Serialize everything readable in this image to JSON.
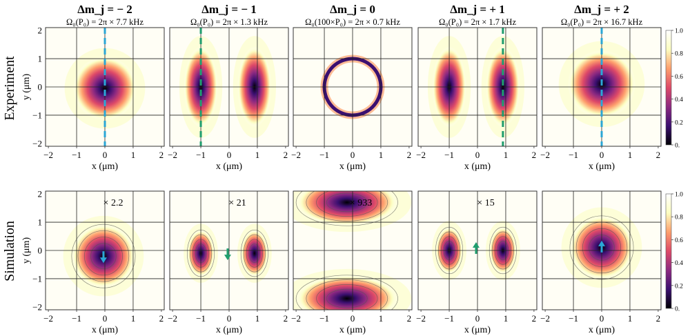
{
  "figure": {
    "row_labels": [
      "Experiment",
      "Simulation"
    ],
    "colorbar_ticks": [
      "1.0",
      "0.8",
      "0.6",
      "0.4",
      "0.2",
      "0."
    ],
    "colorbar_range": [
      0,
      1
    ],
    "colors": {
      "scale": [
        "#000004",
        "#3b0f70",
        "#8c2981",
        "#de4968",
        "#fe9f6d",
        "#fcfdbf",
        "#ffffff"
      ],
      "cut_blue": "#2aa7d6",
      "cut_green": "#1f9e6e",
      "grid": "#222222"
    }
  },
  "chart_data": [
    {
      "type": "heatmap",
      "panel": "experiment",
      "title": "Δm_j = − 2",
      "subtitle": "Ω₀(P₀) = 2π × 7.7 kHz",
      "xlabel": "x (μm)",
      "ylabel": "y (μm)",
      "xlim": [
        -2.1,
        2.1
      ],
      "ylim": [
        -2.1,
        2.1
      ],
      "xticks": [
        "−2",
        "−1",
        "0",
        "1",
        "2"
      ],
      "yticks": [
        "2",
        "1",
        "0",
        "−1",
        "−2"
      ],
      "grid": true,
      "lobes": [
        {
          "x": 0,
          "y": -0.05,
          "sx": 0.75,
          "sy": 0.75
        }
      ],
      "cut_line": {
        "x": 0,
        "color": "cut_blue"
      }
    },
    {
      "type": "heatmap",
      "panel": "experiment",
      "title": "Δm_j = − 1",
      "subtitle": "Ω₀(P₀) = 2π × 1.3 kHz",
      "xlabel": "x (μm)",
      "ylabel": "",
      "xlim": [
        -2.1,
        2.1
      ],
      "ylim": [
        -2.1,
        2.1
      ],
      "xticks": [
        "−2",
        "−1",
        "0",
        "1",
        "2"
      ],
      "yticks": [],
      "grid": true,
      "lobes": [
        {
          "x": -1.0,
          "y": 0,
          "sx": 0.4,
          "sy": 0.95
        },
        {
          "x": 0.9,
          "y": 0,
          "sx": 0.4,
          "sy": 0.95,
          "amp": 0.8
        }
      ],
      "cut_line": {
        "x": -1.0,
        "color": "cut_green"
      }
    },
    {
      "type": "heatmap",
      "panel": "experiment",
      "title": "Δm_j = 0",
      "subtitle": "Ω₀(100×P₀) = 2π × 0.7 kHz",
      "xlabel": "x (μm)",
      "ylabel": "",
      "xlim": [
        -2.1,
        2.1
      ],
      "ylim": [
        -2.1,
        2.1
      ],
      "xticks": [
        "−2",
        "−1",
        "0",
        "1",
        "2"
      ],
      "yticks": [],
      "grid": true,
      "ring": {
        "x": 0,
        "y": 0,
        "r": 1.0
      },
      "cut_line": null
    },
    {
      "type": "heatmap",
      "panel": "experiment",
      "title": "Δm_j = + 1",
      "subtitle": "Ω₀(P₀) = 2π × 1.7 kHz",
      "xlabel": "x (μm)",
      "ylabel": "",
      "xlim": [
        -2.1,
        2.1
      ],
      "ylim": [
        -2.1,
        2.1
      ],
      "xticks": [
        "−2",
        "−1",
        "0",
        "1",
        "2"
      ],
      "yticks": [],
      "grid": true,
      "lobes": [
        {
          "x": -1.0,
          "y": 0,
          "sx": 0.4,
          "sy": 0.95
        },
        {
          "x": 0.9,
          "y": 0,
          "sx": 0.4,
          "sy": 0.95
        }
      ],
      "cut_line": {
        "x": 0.9,
        "color": "cut_green"
      }
    },
    {
      "type": "heatmap",
      "panel": "experiment",
      "title": "Δm_j = + 2",
      "subtitle": "Ω₀(P₀) = 2π × 16.7 kHz",
      "xlabel": "x (μm)",
      "ylabel": "",
      "xlim": [
        -2.1,
        2.1
      ],
      "ylim": [
        -2.1,
        2.1
      ],
      "xticks": [
        "−2",
        "−1",
        "0",
        "1",
        "2"
      ],
      "yticks": [],
      "grid": true,
      "lobes": [
        {
          "x": 0,
          "y": 0.1,
          "sx": 0.8,
          "sy": 0.8
        }
      ],
      "cut_line": {
        "x": 0,
        "color": "cut_blue"
      }
    },
    {
      "type": "heatmap",
      "panel": "simulation",
      "annotation": "× 2.2",
      "xlabel": "x (μm)",
      "ylabel": "y (μm)",
      "xlim": [
        -2.1,
        2.1
      ],
      "ylim": [
        -2.1,
        2.1
      ],
      "xticks": [
        "−2",
        "−1",
        "0",
        "1",
        "2"
      ],
      "yticks": [
        "2",
        "1",
        "0",
        "−1",
        "−2"
      ],
      "grid": true,
      "lobes": [
        {
          "x": -0.05,
          "y": -0.2,
          "sx": 0.75,
          "sy": 0.75
        }
      ],
      "arrow": {
        "x": -0.05,
        "y": -0.2,
        "direction": "down",
        "color": "cut_blue"
      }
    },
    {
      "type": "heatmap",
      "panel": "simulation",
      "annotation": "× 21",
      "xlabel": "x (μm)",
      "ylabel": "",
      "xlim": [
        -2.1,
        2.1
      ],
      "ylim": [
        -2.1,
        2.1
      ],
      "xticks": [
        "−2",
        "−1",
        "0",
        "1",
        "2"
      ],
      "yticks": [],
      "grid": true,
      "lobes": [
        {
          "x": -1.0,
          "y": -0.1,
          "sx": 0.32,
          "sy": 0.55
        },
        {
          "x": 0.9,
          "y": -0.1,
          "sx": 0.32,
          "sy": 0.55
        }
      ],
      "arrow": {
        "x": -0.05,
        "y": -0.1,
        "direction": "down",
        "color": "cut_green"
      }
    },
    {
      "type": "heatmap",
      "panel": "simulation",
      "annotation": "× 933",
      "xlabel": "x (μm)",
      "ylabel": "",
      "xlim": [
        -2.1,
        2.1
      ],
      "ylim": [
        -2.1,
        2.1
      ],
      "xticks": [
        "−2",
        "−1",
        "0",
        "1",
        "2"
      ],
      "yticks": [],
      "grid": true,
      "lobes": [
        {
          "x": -0.2,
          "y": 1.7,
          "sx": 1.2,
          "sy": 0.55
        },
        {
          "x": -0.2,
          "y": -1.7,
          "sx": 1.2,
          "sy": 0.55
        }
      ],
      "arrow": null
    },
    {
      "type": "heatmap",
      "panel": "simulation",
      "annotation": "× 15",
      "xlabel": "x (μm)",
      "ylabel": "",
      "xlim": [
        -2.1,
        2.1
      ],
      "ylim": [
        -2.1,
        2.1
      ],
      "xticks": [
        "−2",
        "−1",
        "0",
        "1",
        "2"
      ],
      "yticks": [],
      "grid": true,
      "lobes": [
        {
          "x": -1.0,
          "y": 0,
          "sx": 0.32,
          "sy": 0.55
        },
        {
          "x": 0.9,
          "y": 0,
          "sx": 0.32,
          "sy": 0.55
        }
      ],
      "arrow": {
        "x": -0.05,
        "y": 0.05,
        "direction": "up",
        "color": "cut_green"
      }
    },
    {
      "type": "heatmap",
      "panel": "simulation",
      "annotation": "",
      "xlabel": "x (μm)",
      "ylabel": "",
      "xlim": [
        -2.1,
        2.1
      ],
      "ylim": [
        -2.1,
        2.1
      ],
      "xticks": [
        "−2",
        "−1",
        "0",
        "1",
        "2"
      ],
      "yticks": [],
      "grid": true,
      "lobes": [
        {
          "x": 0,
          "y": 0.1,
          "sx": 0.75,
          "sy": 0.75
        }
      ],
      "arrow": {
        "x": 0,
        "y": 0.1,
        "direction": "up",
        "color": "cut_blue"
      }
    }
  ]
}
